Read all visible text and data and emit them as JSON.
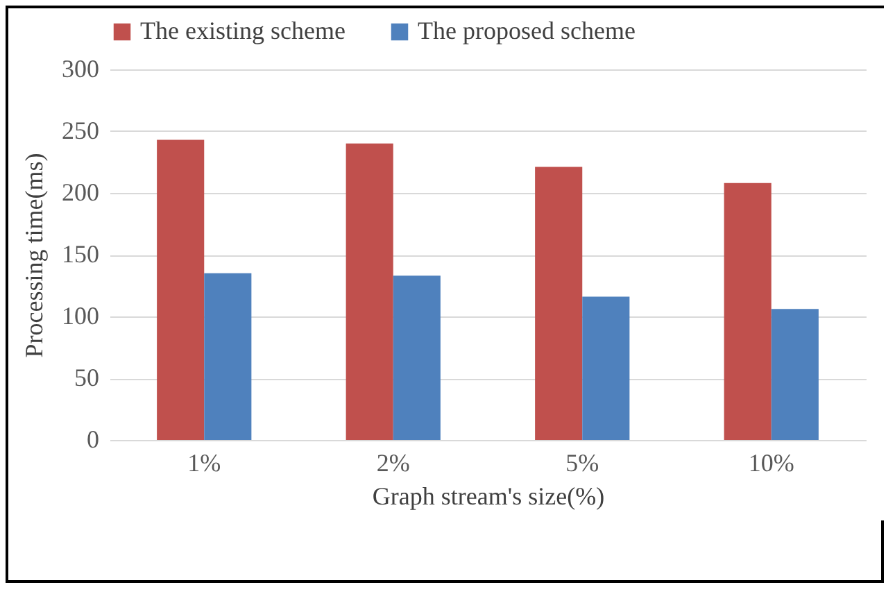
{
  "chart_data": {
    "type": "bar",
    "xlabel": "Graph stream's size(%)",
    "ylabel": "Processing time(ms)",
    "categories": [
      "1%",
      "2%",
      "5%",
      "10%"
    ],
    "series": [
      {
        "name": "The existing scheme",
        "color": "#c0504d",
        "values": [
          243,
          240,
          221,
          208
        ]
      },
      {
        "name": "The proposed scheme",
        "color": "#4f81bd",
        "values": [
          135,
          133,
          116,
          106
        ]
      }
    ],
    "ylim": [
      0,
      300
    ],
    "yticks": [
      0,
      50,
      100,
      150,
      200,
      250,
      300
    ],
    "grid": "y",
    "legend": "top"
  }
}
